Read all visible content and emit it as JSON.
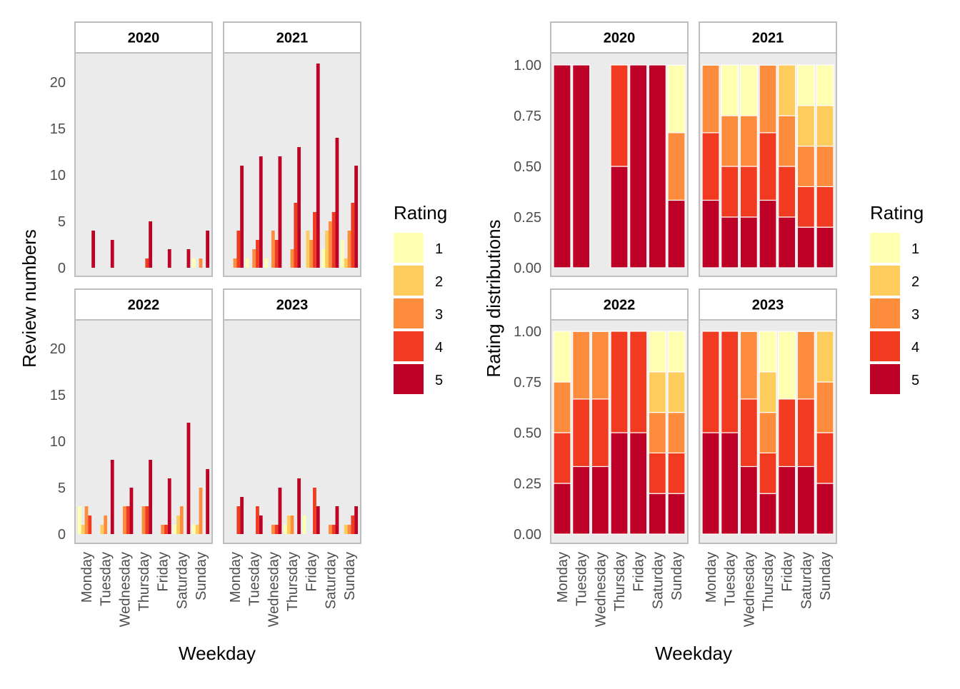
{
  "chart_data": [
    {
      "type": "bar",
      "xlabel": "Weekday",
      "ylabel": "Review numbers",
      "ylim": [
        0,
        23
      ],
      "yticks": [
        0,
        5,
        10,
        15,
        20
      ],
      "categories": [
        "Monday",
        "Tuesday",
        "Wednesday",
        "Thursday",
        "Friday",
        "Saturday",
        "Sunday"
      ],
      "panels": [
        {
          "title": "2020",
          "values": {
            "1": [
              0,
              0,
              0,
              0,
              0,
              0,
              1
            ],
            "2": [
              0,
              0,
              0,
              0,
              0,
              0,
              0
            ],
            "3": [
              0,
              0,
              0,
              0,
              0,
              0,
              1
            ],
            "4": [
              0,
              0,
              0,
              1,
              0,
              0,
              0
            ],
            "5": [
              4,
              3,
              0,
              5,
              2,
              2,
              4
            ]
          }
        },
        {
          "title": "2021",
          "values": {
            "1": [
              0,
              1,
              1,
              0,
              0,
              2,
              3
            ],
            "2": [
              0,
              0,
              0,
              0,
              4,
              4,
              1
            ],
            "3": [
              1,
              2,
              4,
              2,
              3,
              5,
              4
            ],
            "4": [
              4,
              3,
              3,
              7,
              6,
              6,
              7
            ],
            "5": [
              11,
              12,
              12,
              13,
              22,
              14,
              11
            ]
          }
        },
        {
          "title": "2022",
          "values": {
            "1": [
              3,
              0,
              0,
              0,
              0,
              1,
              1
            ],
            "2": [
              1,
              1,
              0,
              0,
              0,
              2,
              1
            ],
            "3": [
              3,
              2,
              3,
              3,
              1,
              3,
              5
            ],
            "4": [
              2,
              0,
              3,
              3,
              1,
              0,
              0
            ],
            "5": [
              0,
              8,
              5,
              8,
              6,
              12,
              7
            ]
          }
        },
        {
          "title": "2023",
          "values": {
            "1": [
              0,
              0,
              0,
              1,
              2,
              0,
              0
            ],
            "2": [
              0,
              0,
              0,
              2,
              0,
              0,
              1
            ],
            "3": [
              0,
              0,
              1,
              2,
              0,
              1,
              1
            ],
            "4": [
              3,
              3,
              1,
              0,
              5,
              1,
              2
            ],
            "5": [
              4,
              2,
              5,
              6,
              3,
              3,
              3
            ]
          }
        }
      ],
      "legend": {
        "title": "Rating",
        "items": [
          "1",
          "2",
          "3",
          "4",
          "5"
        ],
        "position": "right"
      }
    },
    {
      "type": "bar",
      "stacked": true,
      "xlabel": "Weekday",
      "ylabel": "Rating distributions",
      "ylim": [
        0,
        1.1
      ],
      "yticks": [
        "0.00",
        "0.25",
        "0.50",
        "0.75",
        "1.00"
      ],
      "categories": [
        "Monday",
        "Tuesday",
        "Wednesday",
        "Thursday",
        "Friday",
        "Saturday",
        "Sunday"
      ],
      "panels": [
        {
          "title": "2020",
          "values": {
            "1": [
              0,
              0,
              0,
              0,
              0,
              0,
              0.333
            ],
            "2": [
              0,
              0,
              0,
              0,
              0,
              0,
              0
            ],
            "3": [
              0,
              0,
              0,
              0,
              0,
              0,
              0.333
            ],
            "4": [
              0,
              0,
              0,
              0.5,
              0,
              0,
              0
            ],
            "5": [
              1,
              1,
              0,
              0.5,
              1,
              1,
              0.333
            ]
          }
        },
        {
          "title": "2021",
          "values": {
            "1": [
              0,
              0.25,
              0.25,
              0,
              0,
              0.2,
              0.2
            ],
            "2": [
              0,
              0,
              0,
              0,
              0.25,
              0.2,
              0.2
            ],
            "3": [
              0.333,
              0.25,
              0.25,
              0.333,
              0.25,
              0.2,
              0.2
            ],
            "4": [
              0.333,
              0.25,
              0.25,
              0.333,
              0.25,
              0.2,
              0.2
            ],
            "5": [
              0.333,
              0.25,
              0.25,
              0.333,
              0.25,
              0.2,
              0.2
            ]
          }
        },
        {
          "title": "2022",
          "values": {
            "1": [
              0.25,
              0,
              0,
              0,
              0,
              0.2,
              0.2
            ],
            "2": [
              0,
              0,
              0,
              0,
              0,
              0.2,
              0.2
            ],
            "3": [
              0.25,
              0.333,
              0.333,
              0,
              0,
              0.2,
              0.2
            ],
            "4": [
              0.25,
              0.333,
              0.333,
              0.5,
              0.5,
              0.2,
              0.2
            ],
            "5": [
              0.25,
              0.333,
              0.333,
              0.5,
              0.5,
              0.2,
              0.2
            ]
          }
        },
        {
          "title": "2023",
          "values": {
            "1": [
              0,
              0,
              0,
              0.2,
              0.333,
              0,
              0
            ],
            "2": [
              0,
              0,
              0,
              0.2,
              0,
              0,
              0.25
            ],
            "3": [
              0,
              0,
              0.333,
              0.2,
              0,
              0.333,
              0.25
            ],
            "4": [
              0.5,
              0.5,
              0.333,
              0.2,
              0.333,
              0.333,
              0.25
            ],
            "5": [
              0.5,
              0.5,
              0.333,
              0.2,
              0.333,
              0.333,
              0.25
            ]
          }
        }
      ],
      "legend": {
        "title": "Rating",
        "items": [
          "1",
          "2",
          "3",
          "4",
          "5"
        ],
        "position": "right"
      }
    }
  ],
  "colors": {
    "rating": {
      "1": "#FFFFB2",
      "2": "#FECC5C",
      "3": "#FD8D3C",
      "4": "#F03B20",
      "5": "#BD0026"
    },
    "panel_bg": "#EBEBEB",
    "strip_bg": "#FFFFFF",
    "strip_border": "#BEBEBE"
  }
}
